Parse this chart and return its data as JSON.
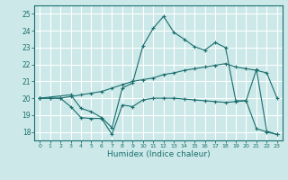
{
  "title": "",
  "xlabel": "Humidex (Indice chaleur)",
  "bg_color": "#cce8e8",
  "grid_color": "#ffffff",
  "line_color": "#1a6e6e",
  "xlim": [
    -0.5,
    23.5
  ],
  "ylim": [
    17.5,
    25.5
  ],
  "xticks": [
    0,
    1,
    2,
    3,
    4,
    5,
    6,
    7,
    8,
    9,
    10,
    11,
    12,
    13,
    14,
    15,
    16,
    17,
    18,
    19,
    20,
    21,
    22,
    23
  ],
  "yticks": [
    18,
    19,
    20,
    21,
    22,
    23,
    24,
    25
  ],
  "line1_x": [
    0,
    1,
    2,
    3,
    4,
    5,
    6,
    7,
    8,
    9,
    10,
    11,
    12,
    13,
    14,
    15,
    16,
    17,
    18,
    19,
    20,
    21,
    22,
    23
  ],
  "line1_y": [
    20.0,
    20.0,
    20.0,
    20.1,
    20.2,
    20.3,
    20.4,
    20.6,
    20.8,
    21.0,
    21.1,
    21.2,
    21.4,
    21.5,
    21.65,
    21.75,
    21.85,
    21.95,
    22.05,
    21.85,
    21.75,
    21.65,
    21.5,
    20.0
  ],
  "line2_x": [
    0,
    1,
    2,
    3,
    4,
    5,
    6,
    7,
    8,
    9,
    10,
    11,
    12,
    13,
    14,
    15,
    16,
    17,
    18,
    19,
    20,
    21,
    22,
    23
  ],
  "line2_y": [
    20.0,
    20.0,
    20.0,
    19.5,
    18.85,
    18.8,
    18.8,
    17.85,
    19.6,
    19.5,
    19.9,
    20.0,
    20.0,
    20.0,
    19.95,
    19.9,
    19.85,
    19.8,
    19.75,
    19.8,
    19.85,
    18.2,
    18.0,
    17.85
  ],
  "line3_x": [
    0,
    3,
    4,
    5,
    6,
    7,
    8,
    9,
    10,
    11,
    12,
    13,
    14,
    15,
    16,
    17,
    18,
    19,
    20,
    21,
    22,
    23
  ],
  "line3_y": [
    20.0,
    20.2,
    19.4,
    19.2,
    18.85,
    18.25,
    20.6,
    20.9,
    23.1,
    24.15,
    24.85,
    23.9,
    23.5,
    23.05,
    22.85,
    23.3,
    23.0,
    19.85,
    19.85,
    21.7,
    18.05,
    17.85
  ]
}
